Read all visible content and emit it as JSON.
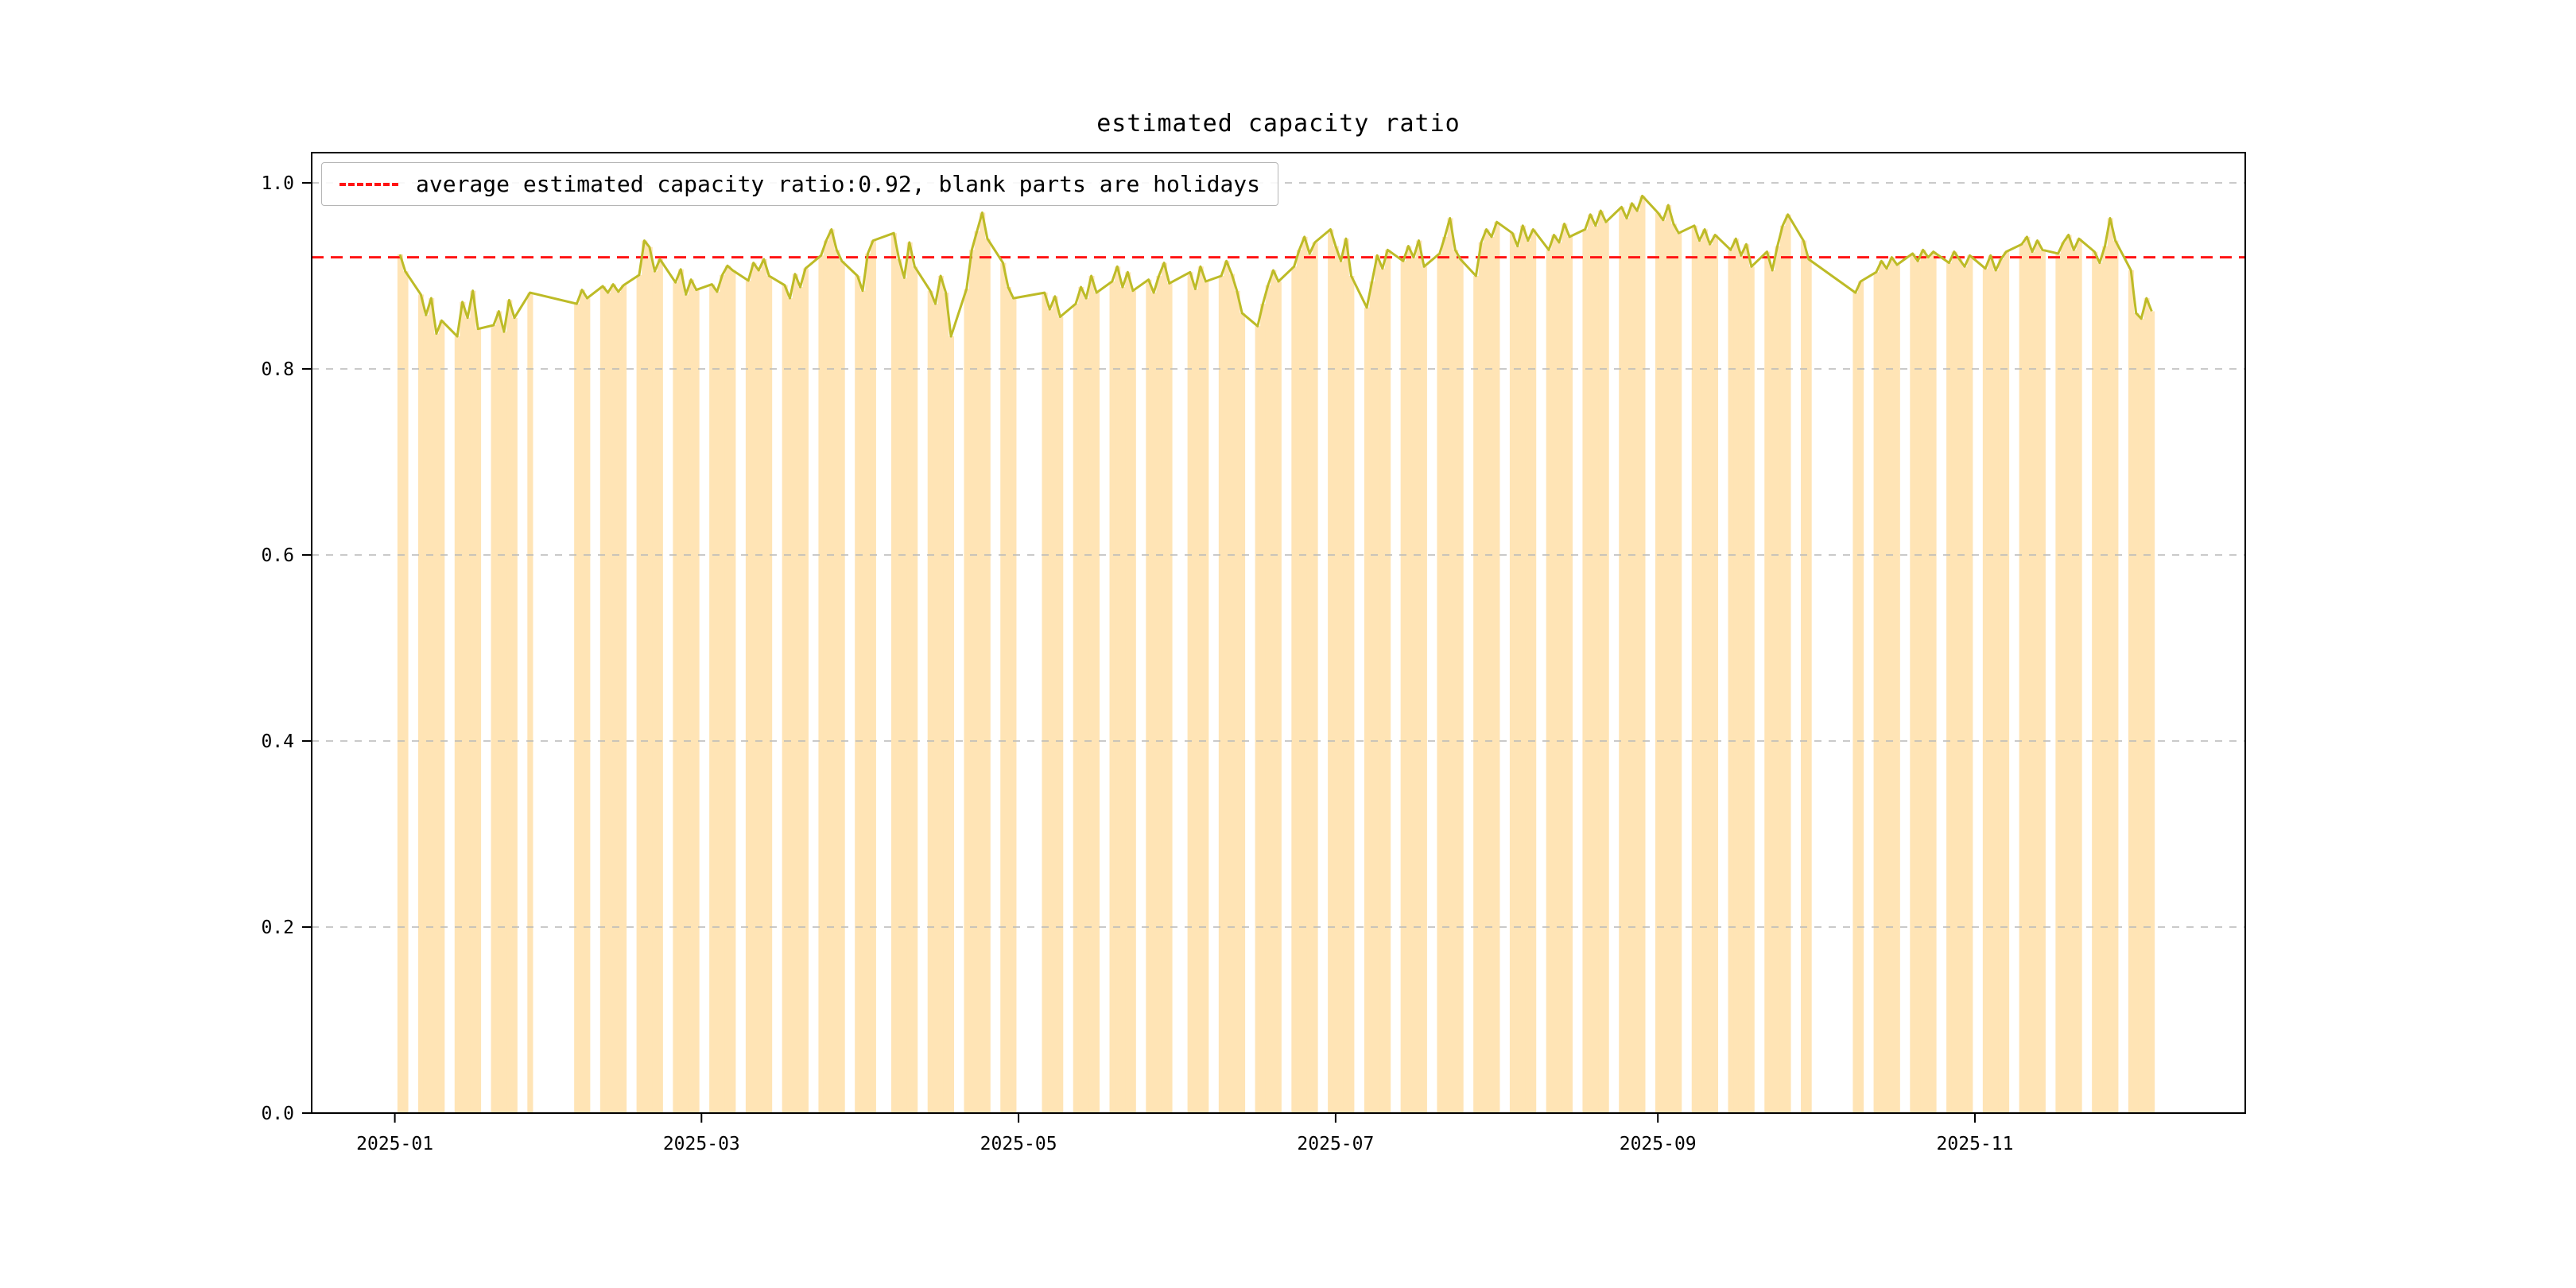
{
  "chart_data": {
    "type": "bar+line",
    "title": "estimated capacity ratio",
    "legend_label": "average estimated capacity ratio:0.92, blank parts are holidays",
    "legend_position": "upper-left",
    "average": 0.92,
    "ylim": [
      0.0,
      1.0325
    ],
    "yticks": [
      0.0,
      0.2,
      0.4,
      0.6,
      0.8,
      1.0
    ],
    "xticks": [
      {
        "date": "2025-01-01",
        "label": "2025-01"
      },
      {
        "date": "2025-03-01",
        "label": "2025-03"
      },
      {
        "date": "2025-05-01",
        "label": "2025-05"
      },
      {
        "date": "2025-07-01",
        "label": "2025-07"
      },
      {
        "date": "2025-09-01",
        "label": "2025-09"
      },
      {
        "date": "2025-11-01",
        "label": "2025-11"
      }
    ],
    "x_domain": [
      "2024-12-16",
      "2025-12-23"
    ],
    "grid": {
      "axis": "y",
      "style": "dashed"
    },
    "series_colors": {
      "bars": "#ffe4b5",
      "line": "#bdbb27",
      "average_line": "#ff1414",
      "grid": "#b9b9b9",
      "spine": "#000000"
    },
    "segments": [
      {
        "start": "2025-01-02",
        "values": [
          0.923,
          0.905
        ]
      },
      {
        "start": "2025-01-06",
        "values": [
          0.88,
          0.858,
          0.876,
          0.838,
          0.852
        ]
      },
      {
        "start": "2025-01-13",
        "values": [
          0.835,
          0.872,
          0.855,
          0.884,
          0.843
        ]
      },
      {
        "start": "2025-01-20",
        "values": [
          0.847,
          0.862,
          0.84,
          0.874,
          0.855
        ]
      },
      {
        "start": "2025-01-27",
        "values": [
          0.882
        ]
      },
      {
        "start": "2025-02-05",
        "values": [
          0.87,
          0.885,
          0.876
        ]
      },
      {
        "start": "2025-02-10",
        "values": [
          0.889,
          0.882,
          0.891,
          0.883,
          0.89
        ]
      },
      {
        "start": "2025-02-17",
        "values": [
          0.901,
          0.938,
          0.931,
          0.905,
          0.918
        ]
      },
      {
        "start": "2025-02-24",
        "values": [
          0.893,
          0.907,
          0.88,
          0.896,
          0.885
        ]
      },
      {
        "start": "2025-03-03",
        "values": [
          0.891,
          0.883,
          0.901,
          0.911,
          0.906
        ]
      },
      {
        "start": "2025-03-10",
        "values": [
          0.895,
          0.914,
          0.906,
          0.918,
          0.9
        ]
      },
      {
        "start": "2025-03-17",
        "values": [
          0.89,
          0.876,
          0.902,
          0.888,
          0.908
        ]
      },
      {
        "start": "2025-03-24",
        "values": [
          0.922,
          0.938,
          0.95,
          0.928,
          0.916
        ]
      },
      {
        "start": "2025-03-31",
        "values": [
          0.9,
          0.884,
          0.924,
          0.938
        ]
      },
      {
        "start": "2025-04-07",
        "values": [
          0.946,
          0.918,
          0.898,
          0.936,
          0.91
        ]
      },
      {
        "start": "2025-04-14",
        "values": [
          0.884,
          0.87,
          0.9,
          0.882,
          0.835
        ]
      },
      {
        "start": "2025-04-21",
        "values": [
          0.886,
          0.928,
          0.948,
          0.968,
          0.94
        ]
      },
      {
        "start": "2025-04-28",
        "values": [
          0.914,
          0.888,
          0.876
        ]
      },
      {
        "start": "2025-05-06",
        "values": [
          0.882,
          0.864,
          0.878,
          0.856
        ]
      },
      {
        "start": "2025-05-12",
        "values": [
          0.87,
          0.888,
          0.876,
          0.9,
          0.882
        ]
      },
      {
        "start": "2025-05-19",
        "values": [
          0.894,
          0.91,
          0.888,
          0.904,
          0.884
        ]
      },
      {
        "start": "2025-05-26",
        "values": [
          0.896,
          0.882,
          0.9,
          0.914,
          0.892
        ]
      },
      {
        "start": "2025-06-03",
        "values": [
          0.904,
          0.886,
          0.91,
          0.894
        ]
      },
      {
        "start": "2025-06-09",
        "values": [
          0.9,
          0.916,
          0.902,
          0.884,
          0.86
        ]
      },
      {
        "start": "2025-06-16",
        "values": [
          0.846,
          0.87,
          0.89,
          0.906,
          0.894
        ]
      },
      {
        "start": "2025-06-23",
        "values": [
          0.91,
          0.928,
          0.942,
          0.924,
          0.936
        ]
      },
      {
        "start": "2025-06-30",
        "values": [
          0.95,
          0.932,
          0.916,
          0.94,
          0.9
        ]
      },
      {
        "start": "2025-07-07",
        "values": [
          0.866,
          0.894,
          0.922,
          0.908,
          0.928
        ]
      },
      {
        "start": "2025-07-14",
        "values": [
          0.916,
          0.932,
          0.92,
          0.938,
          0.91
        ]
      },
      {
        "start": "2025-07-21",
        "values": [
          0.924,
          0.942,
          0.962,
          0.928,
          0.918
        ]
      },
      {
        "start": "2025-07-28",
        "values": [
          0.9,
          0.936,
          0.95,
          0.942,
          0.958
        ]
      },
      {
        "start": "2025-08-04",
        "values": [
          0.946,
          0.932,
          0.954,
          0.938,
          0.95
        ]
      },
      {
        "start": "2025-08-11",
        "values": [
          0.928,
          0.944,
          0.936,
          0.956,
          0.942
        ]
      },
      {
        "start": "2025-08-18",
        "values": [
          0.95,
          0.966,
          0.954,
          0.97,
          0.958
        ]
      },
      {
        "start": "2025-08-25",
        "values": [
          0.974,
          0.962,
          0.978,
          0.97,
          0.986
        ]
      },
      {
        "start": "2025-09-01",
        "values": [
          0.968,
          0.96,
          0.976,
          0.956,
          0.946
        ]
      },
      {
        "start": "2025-09-08",
        "values": [
          0.954,
          0.938,
          0.95,
          0.934,
          0.944
        ]
      },
      {
        "start": "2025-09-15",
        "values": [
          0.928,
          0.94,
          0.922,
          0.934,
          0.91
        ]
      },
      {
        "start": "2025-09-22",
        "values": [
          0.926,
          0.906,
          0.932,
          0.954,
          0.966
        ]
      },
      {
        "start": "2025-09-29",
        "values": [
          0.938,
          0.918
        ]
      },
      {
        "start": "2025-10-09",
        "values": [
          0.882,
          0.894
        ]
      },
      {
        "start": "2025-10-13",
        "values": [
          0.904,
          0.916,
          0.908,
          0.92,
          0.912
        ]
      },
      {
        "start": "2025-10-20",
        "values": [
          0.924,
          0.916,
          0.928,
          0.92,
          0.926
        ]
      },
      {
        "start": "2025-10-27",
        "values": [
          0.914,
          0.926,
          0.918,
          0.91,
          0.922
        ]
      },
      {
        "start": "2025-11-03",
        "values": [
          0.908,
          0.922,
          0.906,
          0.918,
          0.926
        ]
      },
      {
        "start": "2025-11-10",
        "values": [
          0.934,
          0.942,
          0.926,
          0.938,
          0.928
        ]
      },
      {
        "start": "2025-11-17",
        "values": [
          0.924,
          0.936,
          0.944,
          0.928,
          0.94
        ]
      },
      {
        "start": "2025-11-24",
        "values": [
          0.926,
          0.914,
          0.932,
          0.962,
          0.938
        ]
      },
      {
        "start": "2025-12-01",
        "values": [
          0.906,
          0.86,
          0.854,
          0.876,
          0.862
        ]
      }
    ]
  }
}
